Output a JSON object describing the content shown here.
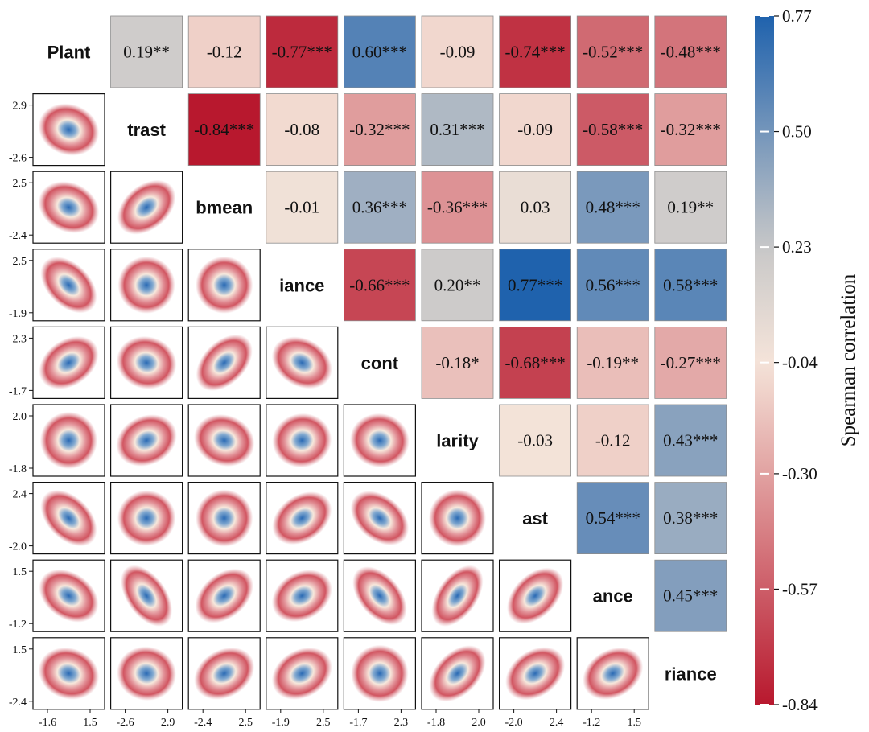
{
  "chart_data": {
    "type": "heatmap",
    "subtype": "correlation-matrix-pairplot",
    "variables": [
      "Plant",
      "trast",
      "bmean",
      "iance",
      "cont",
      "larity",
      "ast",
      "ance",
      "riance"
    ],
    "upper": [
      [
        "0.19**",
        "-0.12",
        "-0.77***",
        "0.60***",
        "-0.09",
        "-0.74***",
        "-0.52***",
        "-0.48***"
      ],
      [
        "-0.84***",
        "-0.08",
        "-0.32***",
        "0.31***",
        "-0.09",
        "-0.58***",
        "-0.32***"
      ],
      [
        "-0.01",
        "0.36***",
        "-0.36***",
        "0.03",
        "0.48***",
        "0.19**"
      ],
      [
        "-0.66***",
        "0.20**",
        "0.77***",
        "0.56***",
        "0.58***"
      ],
      [
        "-0.18*",
        "-0.68***",
        "-0.19**",
        "-0.27***"
      ],
      [
        "-0.03",
        "-0.12",
        "0.43***"
      ],
      [
        "0.54***",
        "0.38***"
      ],
      [
        "0.45***"
      ]
    ],
    "row_axis": [
      {
        "top": "",
        "bottom": ""
      },
      {
        "top": "2.9",
        "bottom": "-2.6"
      },
      {
        "top": "2.5",
        "bottom": "-2.4"
      },
      {
        "top": "2.5",
        "bottom": "-1.9"
      },
      {
        "top": "2.3",
        "bottom": "-1.7"
      },
      {
        "top": "2.0",
        "bottom": "-1.8"
      },
      {
        "top": "2.4",
        "bottom": "-2.0"
      },
      {
        "top": "1.5",
        "bottom": "-1.2"
      },
      {
        "top": "1.5",
        "bottom": "-2.4"
      }
    ],
    "col_axis": [
      {
        "left": "-1.6",
        "right": "1.5"
      },
      {
        "left": "-2.6",
        "right": "2.9"
      },
      {
        "left": "-2.4",
        "right": "2.5"
      },
      {
        "left": "-1.9",
        "right": "2.5"
      },
      {
        "left": "-1.7",
        "right": "2.3"
      },
      {
        "left": "-1.8",
        "right": "2.0"
      },
      {
        "left": "-2.0",
        "right": "2.4"
      },
      {
        "left": "-1.2",
        "right": "1.5"
      }
    ],
    "lower_density_angles_deg": [
      [
        -20
      ],
      [
        -25,
        40
      ],
      [
        -45,
        0,
        0
      ],
      [
        35,
        -15,
        45,
        -30
      ],
      [
        0,
        25,
        -20,
        10,
        -10
      ],
      [
        -45,
        5,
        0,
        35,
        -40,
        0
      ],
      [
        -35,
        -55,
        40,
        30,
        -50,
        55,
        45
      ],
      [
        -20,
        -10,
        30,
        30,
        0,
        45,
        35,
        30
      ]
    ],
    "colorbar": {
      "title": "Spearman correlation",
      "min": -0.84,
      "max": 0.77,
      "ticks": [
        "0.77",
        "0.50",
        "0.23",
        "-0.04",
        "-0.30",
        "-0.57",
        "-0.84"
      ],
      "colors": {
        "negative": "#b8182e",
        "neutral": "#f5e4d9",
        "grey": "#c8c8c8",
        "positive": "#1f62ad"
      }
    }
  }
}
